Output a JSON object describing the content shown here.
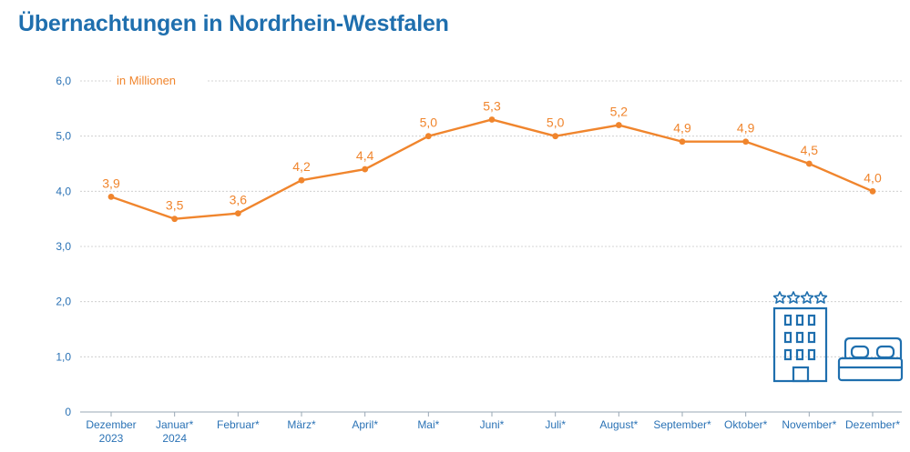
{
  "title": "Übernachtungen in Nordrhein-Westfalen",
  "colors": {
    "title": "#1f6fae",
    "axis": "#2a72b5",
    "line": "#f0852d",
    "grid": "#c8c8c8",
    "icon": "#1f6fae"
  },
  "icons": [
    "hotel-building-icon",
    "double-bed-icon",
    "four-stars-icon"
  ],
  "chart_data": {
    "type": "line",
    "unit_label": "in Millionen",
    "categories": [
      [
        "Dezember",
        "2023"
      ],
      [
        "Januar*",
        "2024"
      ],
      [
        "Februar*"
      ],
      [
        "März*"
      ],
      [
        "April*"
      ],
      [
        "Mai*"
      ],
      [
        "Juni*"
      ],
      [
        "Juli*"
      ],
      [
        "August*"
      ],
      [
        "September*"
      ],
      [
        "Oktober*"
      ],
      [
        "November*"
      ],
      [
        "Dezember*"
      ]
    ],
    "values": [
      3.9,
      3.5,
      3.6,
      4.2,
      4.4,
      5.0,
      5.3,
      5.0,
      5.2,
      4.9,
      4.9,
      4.5,
      4.0
    ],
    "value_labels": [
      "3,9",
      "3,5",
      "3,6",
      "4,2",
      "4,4",
      "5,0",
      "5,3",
      "5,0",
      "5,2",
      "4,9",
      "4,9",
      "4,5",
      "4,0"
    ],
    "y_ticks": [
      0,
      1,
      2,
      3,
      4,
      5,
      6
    ],
    "y_tick_labels": [
      "0",
      "1,0",
      "2,0",
      "3,0",
      "4,0",
      "5,0",
      "6,0"
    ],
    "ylim": [
      0,
      6
    ],
    "grid": true
  }
}
